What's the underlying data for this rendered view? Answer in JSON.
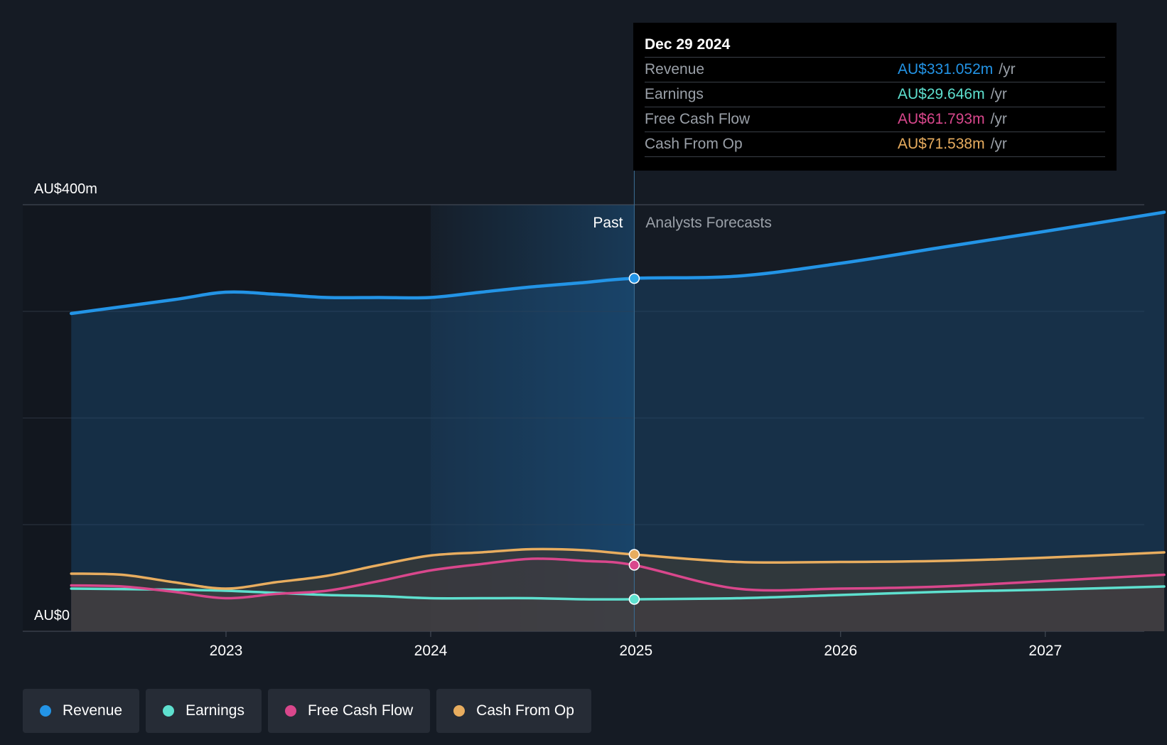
{
  "chart_data": {
    "type": "area",
    "x_ticks": [
      "2023",
      "2024",
      "2025",
      "2026",
      "2027"
    ],
    "y_ticks": [
      "AU$400m",
      "AU$0"
    ],
    "ylim": [
      0,
      400
    ],
    "past_label": "Past",
    "forecast_label": "Analysts Forecasts",
    "divider_date": "Dec 29 2024",
    "series": [
      {
        "name": "Revenue",
        "color": "#2394e6",
        "points": [
          [
            "2022-03-31",
            298
          ],
          [
            "2022-09-30",
            311
          ],
          [
            "2022-12-31",
            318
          ],
          [
            "2023-03-31",
            316
          ],
          [
            "2023-06-30",
            313
          ],
          [
            "2023-09-30",
            313
          ],
          [
            "2023-12-31",
            313
          ],
          [
            "2024-03-31",
            318
          ],
          [
            "2024-06-30",
            323
          ],
          [
            "2024-09-30",
            327
          ],
          [
            "2024-12-29",
            331
          ],
          [
            "2025-06-30",
            333
          ],
          [
            "2025-12-31",
            345
          ],
          [
            "2026-06-30",
            360
          ],
          [
            "2026-12-31",
            375
          ],
          [
            "2027-08-01",
            393
          ]
        ]
      },
      {
        "name": "Earnings",
        "color": "#5ee0cf",
        "points": [
          [
            "2022-03-31",
            40
          ],
          [
            "2022-09-30",
            39
          ],
          [
            "2022-12-31",
            38
          ],
          [
            "2023-03-31",
            36
          ],
          [
            "2023-06-30",
            34
          ],
          [
            "2023-09-30",
            33
          ],
          [
            "2023-12-31",
            31
          ],
          [
            "2024-03-31",
            31
          ],
          [
            "2024-06-30",
            31
          ],
          [
            "2024-09-30",
            30
          ],
          [
            "2024-12-29",
            30
          ],
          [
            "2025-06-30",
            31
          ],
          [
            "2025-12-31",
            34
          ],
          [
            "2026-06-30",
            37
          ],
          [
            "2026-12-31",
            39
          ],
          [
            "2027-08-01",
            42
          ]
        ]
      },
      {
        "name": "Free Cash Flow",
        "color": "#d9478c",
        "points": [
          [
            "2022-03-31",
            43
          ],
          [
            "2022-06-30",
            42
          ],
          [
            "2022-09-30",
            37
          ],
          [
            "2022-12-31",
            31
          ],
          [
            "2023-03-31",
            35
          ],
          [
            "2023-06-30",
            38
          ],
          [
            "2023-09-30",
            47
          ],
          [
            "2023-12-31",
            57
          ],
          [
            "2024-03-31",
            63
          ],
          [
            "2024-06-30",
            68
          ],
          [
            "2024-09-30",
            66
          ],
          [
            "2024-12-29",
            62
          ],
          [
            "2025-06-30",
            40
          ],
          [
            "2025-12-31",
            40
          ],
          [
            "2026-06-30",
            42
          ],
          [
            "2026-12-31",
            47
          ],
          [
            "2027-08-01",
            53
          ]
        ]
      },
      {
        "name": "Cash From Op",
        "color": "#e8ad5f",
        "points": [
          [
            "2022-03-31",
            54
          ],
          [
            "2022-06-30",
            53
          ],
          [
            "2022-09-30",
            46
          ],
          [
            "2022-12-31",
            40
          ],
          [
            "2023-03-31",
            46
          ],
          [
            "2023-06-30",
            52
          ],
          [
            "2023-09-30",
            62
          ],
          [
            "2023-12-31",
            71
          ],
          [
            "2024-03-31",
            74
          ],
          [
            "2024-06-30",
            77
          ],
          [
            "2024-09-30",
            76
          ],
          [
            "2024-12-29",
            72
          ],
          [
            "2025-06-30",
            65
          ],
          [
            "2025-12-31",
            65
          ],
          [
            "2026-06-30",
            66
          ],
          [
            "2026-12-31",
            69
          ],
          [
            "2027-08-01",
            74
          ]
        ]
      }
    ]
  },
  "tooltip": {
    "date": "Dec 29 2024",
    "rows": [
      {
        "label": "Revenue",
        "value": "AU$331.052m",
        "unit": "/yr",
        "color": "#2394e6"
      },
      {
        "label": "Earnings",
        "value": "AU$29.646m",
        "unit": "/yr",
        "color": "#5ee0cf"
      },
      {
        "label": "Free Cash Flow",
        "value": "AU$61.793m",
        "unit": "/yr",
        "color": "#d9478c"
      },
      {
        "label": "Cash From Op",
        "value": "AU$71.538m",
        "unit": "/yr",
        "color": "#e8ad5f"
      }
    ]
  },
  "legend": [
    {
      "label": "Revenue",
      "color": "#2394e6"
    },
    {
      "label": "Earnings",
      "color": "#5ee0cf"
    },
    {
      "label": "Free Cash Flow",
      "color": "#d9478c"
    },
    {
      "label": "Cash From Op",
      "color": "#e8ad5f"
    }
  ]
}
